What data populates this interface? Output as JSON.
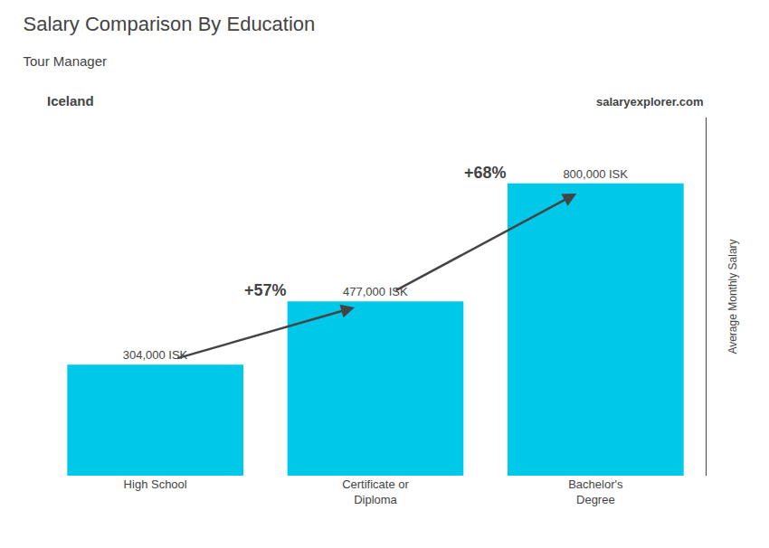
{
  "chart_data": {
    "type": "bar",
    "title": "Salary Comparison By Education",
    "subtitle": "Tour Manager",
    "categories": [
      "High School",
      "Certificate or\nDiploma",
      "Bachelor's\nDegree"
    ],
    "values": [
      304000,
      477000,
      800000
    ],
    "value_labels": [
      "304,000 ISK",
      "477,000 ISK",
      "800,000 ISK"
    ],
    "data_labels": true,
    "color": "#00C8E8",
    "ylabel": "Average Monthly Salary",
    "ylim": [
      0,
      980000
    ],
    "tick_labels": "x",
    "grid": false,
    "annotations": [
      "Iceland",
      "salaryexplorer.com"
    ],
    "change_labels": [
      "+57%",
      "+68%"
    ]
  }
}
